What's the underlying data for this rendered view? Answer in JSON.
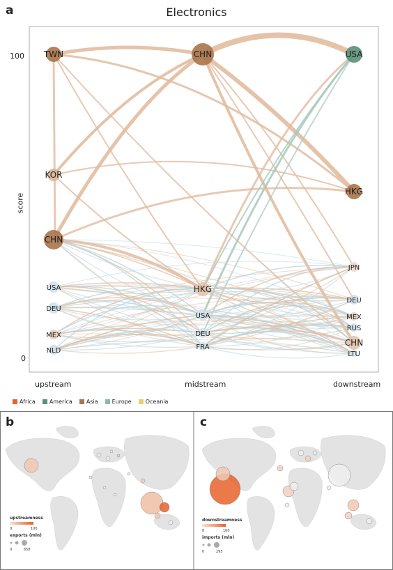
{
  "panel_a": {
    "letter": "a",
    "title": "Electronics",
    "y_axis_label": "score",
    "y_ticks": [
      "100",
      "0"
    ],
    "x_labels": [
      "upstream",
      "midstream",
      "downstream"
    ],
    "legend": [
      {
        "label": "Africa",
        "color": "#e8622a"
      },
      {
        "label": "America",
        "color": "#5b8f7a"
      },
      {
        "label": "Asia",
        "color": "#a9744a"
      },
      {
        "label": "Europe",
        "color": "#8db9a8"
      },
      {
        "label": "Oceania",
        "color": "#e8cf6a"
      }
    ],
    "nodes": {
      "upstream": [
        "TWN",
        "KOR",
        "CHN",
        "USA",
        "DEU",
        "MEX",
        "NLD"
      ],
      "midstream": [
        "CHN",
        "HKG",
        "USA",
        "DEU",
        "FRA"
      ],
      "downstream": [
        "USA",
        "HKG",
        "JPN",
        "DEU",
        "MEX",
        "RUS",
        "CHN",
        "LTU"
      ]
    }
  },
  "panel_b": {
    "letter": "b",
    "legend_title": "upstreamness",
    "scale_ticks": [
      "0",
      "100"
    ],
    "size_title": "exports (mln)",
    "size_ticks": [
      "0",
      "658"
    ]
  },
  "panel_c": {
    "letter": "c",
    "legend_title": "downstreamness",
    "scale_ticks": [
      "0",
      "100"
    ],
    "size_title": "imports (mln)",
    "size_ticks": [
      "0",
      "295"
    ]
  }
}
